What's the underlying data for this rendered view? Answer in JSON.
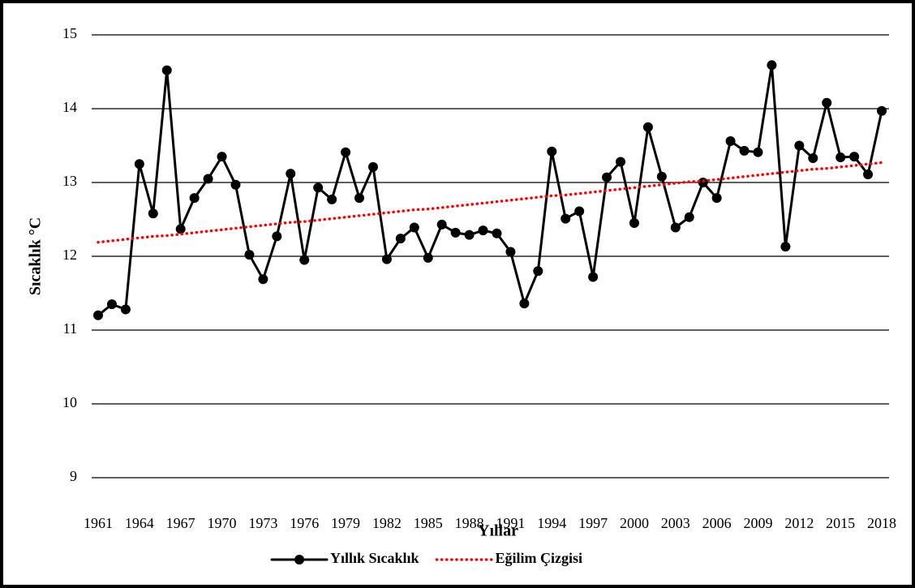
{
  "chart_data": {
    "type": "line",
    "x_label": "Yıllar",
    "y_label": "Sıcaklık °C",
    "categories": [
      "1961",
      null,
      null,
      "1964",
      null,
      null,
      "1967",
      null,
      null,
      "1970",
      null,
      null,
      "1973",
      null,
      null,
      "1976",
      null,
      null,
      "1979",
      null,
      null,
      "1982",
      null,
      null,
      "1985",
      null,
      null,
      "1988",
      null,
      null,
      "1991",
      null,
      null,
      "1994",
      null,
      null,
      "1997",
      null,
      null,
      "2000",
      null,
      null,
      "2003",
      null,
      null,
      "2006",
      null,
      null,
      "2009",
      null,
      null,
      "2012",
      null,
      null,
      "2015",
      null,
      null,
      "2018"
    ],
    "series": [
      {
        "name": "Yıllık Sıcaklık",
        "color": "#000000",
        "style": "solid",
        "markers": true,
        "values": [
          11.2,
          11.35,
          11.28,
          13.25,
          12.58,
          14.52,
          12.37,
          12.79,
          13.05,
          13.35,
          12.97,
          12.02,
          11.69,
          12.27,
          13.12,
          11.95,
          12.93,
          12.77,
          13.41,
          12.79,
          13.21,
          11.96,
          12.24,
          12.39,
          11.98,
          12.43,
          12.32,
          12.29,
          12.35,
          12.31,
          12.06,
          11.36,
          11.8,
          13.42,
          12.51,
          12.61,
          11.72,
          13.07,
          13.28,
          12.45,
          13.75,
          13.08,
          12.39,
          12.53,
          13.0,
          12.79,
          13.56,
          13.43,
          13.41,
          14.59,
          12.13,
          13.5,
          13.33,
          14.08,
          13.34,
          13.35,
          13.11,
          13.97
        ]
      },
      {
        "name": "Eğilim Çizgisi",
        "color": "#ff0000",
        "style": "dotted",
        "markers": false,
        "values": [
          12.19,
          12.21,
          12.23,
          12.25,
          12.27,
          12.28,
          12.3,
          12.32,
          12.34,
          12.36,
          12.38,
          12.4,
          12.42,
          12.44,
          12.46,
          12.47,
          12.49,
          12.51,
          12.53,
          12.55,
          12.57,
          12.59,
          12.61,
          12.63,
          12.64,
          12.66,
          12.68,
          12.7,
          12.72,
          12.74,
          12.76,
          12.78,
          12.8,
          12.82,
          12.83,
          12.85,
          12.87,
          12.89,
          12.91,
          12.93,
          12.95,
          12.97,
          12.99,
          13.01,
          13.02,
          13.04,
          13.06,
          13.08,
          13.1,
          13.12,
          13.14,
          13.16,
          13.18,
          13.19,
          13.21,
          13.23,
          13.25,
          13.27
        ]
      }
    ],
    "ylim": [
      9,
      15
    ],
    "yticks": [
      9,
      10,
      11,
      12,
      13,
      14,
      15
    ],
    "grid": true,
    "legend": "bottom"
  }
}
